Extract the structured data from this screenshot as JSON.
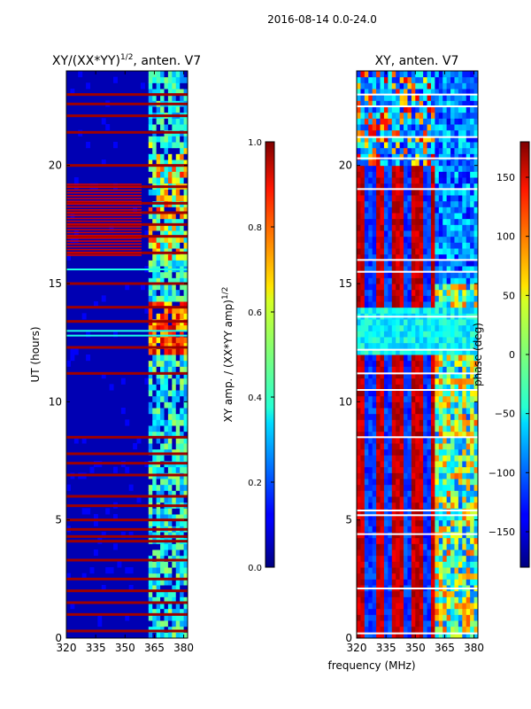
{
  "figure": {
    "suptitle": "2016-08-14 0.0-24.0",
    "xlabel": "frequency (MHz)"
  },
  "chart_data": [
    {
      "type": "heatmap",
      "title": "XY/(XX*YY)",
      "title_exponent": "1/2",
      "title_suffix": ", anten. V7",
      "xlabel": "",
      "ylabel": "UT (hours)",
      "xlim": [
        320,
        382
      ],
      "ylim": [
        0,
        24
      ],
      "xticks": [
        320,
        335,
        350,
        365,
        380
      ],
      "yticks": [
        0,
        5,
        10,
        15,
        20
      ],
      "colorbar": {
        "label": "XY amp. / (XX*YY amp)",
        "label_exponent": "1/2",
        "range": [
          0.0,
          1.0
        ],
        "ticks": [
          "0.0",
          "0.2",
          "0.4",
          "0.6",
          "0.8",
          "1.0"
        ],
        "colormap": "jet"
      },
      "features": {
        "background_level": 0.05,
        "high_band_mhz": [
          362,
          382
        ],
        "saturated_rows_hours": [
          0.3,
          1.0,
          1.5,
          2.0,
          2.5,
          3.3,
          4.1,
          4.3,
          4.6,
          5.0,
          5.6,
          6.0,
          6.9,
          7.4,
          7.8,
          8.5,
          11.2,
          12.3,
          13.4,
          14.0,
          15.0,
          16.3,
          17.0,
          17.5,
          18.0,
          18.4,
          19.1,
          20.0,
          21.4,
          22.1,
          22.6,
          23.0
        ],
        "cyan_rows_hours": [
          12.8,
          13.0,
          15.6
        ]
      }
    },
    {
      "type": "heatmap",
      "title": "XY, anten. V7",
      "xlabel": "",
      "ylabel": "",
      "xlim": [
        320,
        382
      ],
      "ylim": [
        0,
        24
      ],
      "xticks": [
        320,
        335,
        350,
        365,
        380
      ],
      "yticks": [
        0,
        5,
        10,
        15,
        20
      ],
      "colorbar": {
        "label": "phase (deg)",
        "range": [
          -180,
          180
        ],
        "ticks": [
          "−150",
          "−100",
          "−50",
          "0",
          "50",
          "100",
          "150"
        ],
        "tick_values": [
          -150,
          -100,
          -50,
          0,
          50,
          100,
          150
        ],
        "colormap": "jet"
      },
      "features": {
        "stripe_period_mhz": 9.5,
        "white_rows_hours": [
          0.2,
          2.1,
          4.4,
          5.2,
          5.4,
          8.5,
          10.5,
          11.2,
          12.2,
          13.6,
          15.5,
          16.0,
          19.0,
          20.3,
          21.2,
          22.5,
          23.0
        ]
      }
    }
  ]
}
